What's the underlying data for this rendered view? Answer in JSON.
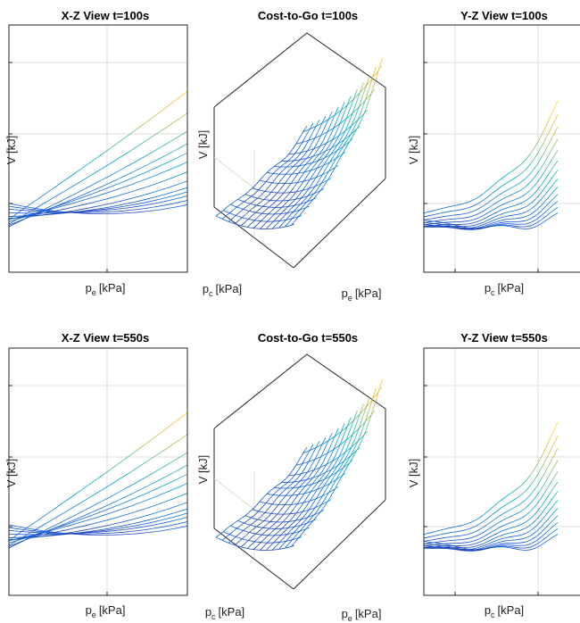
{
  "chart_data": [
    {
      "type": "surface",
      "view": "x-z",
      "title": "X-Z View t=100s",
      "xlabel": "p",
      "xlabel_sub": "e",
      "xlabel_unit": "[kPa]",
      "ylabel": "V [kJ]",
      "colormap": "parula",
      "grid": true
    },
    {
      "type": "surface",
      "view": "3d",
      "title": "Cost-to-Go t=100s",
      "zlabel": "V [kJ]",
      "xlabel": "p",
      "xlabel_sub": "e",
      "xlabel_unit": "[kPa]",
      "ylabel": "p",
      "ylabel_sub": "c",
      "ylabel_unit": "[kPa]",
      "colormap": "parula",
      "grid": true
    },
    {
      "type": "surface",
      "view": "y-z",
      "title": "Y-Z View  t=100s",
      "xlabel": "p",
      "xlabel_sub": "c",
      "xlabel_unit": "[kPa]",
      "ylabel": "V [kJ]",
      "colormap": "parula",
      "grid": true
    },
    {
      "type": "surface",
      "view": "x-z",
      "title": "X-Z View t=550s",
      "xlabel": "p",
      "xlabel_sub": "e",
      "xlabel_unit": "[kPa]",
      "ylabel": "V [kJ]",
      "colormap": "parula",
      "grid": true
    },
    {
      "type": "surface",
      "view": "3d",
      "title": "Cost-to-Go t=550s",
      "zlabel": "V [kJ]",
      "xlabel": "p",
      "xlabel_sub": "e",
      "xlabel_unit": "[kPa]",
      "ylabel": "p",
      "ylabel_sub": "c",
      "ylabel_unit": "[kPa]",
      "colormap": "parula",
      "grid": true
    },
    {
      "type": "surface",
      "view": "y-z",
      "title": "Y-Z View  t=550s",
      "xlabel": "p",
      "xlabel_sub": "c",
      "xlabel_unit": "[kPa]",
      "ylabel": "V [kJ]",
      "colormap": "parula",
      "grid": true
    }
  ]
}
